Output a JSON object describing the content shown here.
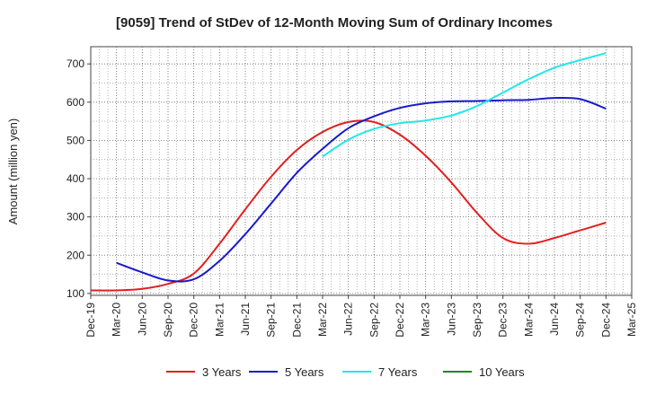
{
  "chart_data": {
    "type": "line",
    "title": "[9059]  Trend of StDev of 12-Month Moving Sum of Ordinary Incomes",
    "ylabel": "Amount (million yen)",
    "xlabel": "",
    "ylim": [
      95,
      745
    ],
    "yticks": [
      100,
      200,
      300,
      400,
      500,
      600,
      700
    ],
    "categories": [
      "Dec-19",
      "Mar-20",
      "Jun-20",
      "Sep-20",
      "Dec-20",
      "Mar-21",
      "Jun-21",
      "Sep-21",
      "Dec-21",
      "Mar-22",
      "Jun-22",
      "Sep-22",
      "Dec-22",
      "Mar-23",
      "Jun-23",
      "Sep-23",
      "Dec-23",
      "Mar-24",
      "Jun-24",
      "Sep-24",
      "Dec-24",
      "Mar-25"
    ],
    "grid": true,
    "legend_position": "bottom",
    "series": [
      {
        "name": "3 Years",
        "color": "#e02020",
        "x": [
          "Dec-19",
          "Mar-20",
          "Jun-20",
          "Sep-20",
          "Dec-20",
          "Mar-21",
          "Jun-21",
          "Sep-21",
          "Dec-21",
          "Mar-22",
          "Jun-22",
          "Sep-22",
          "Dec-22",
          "Mar-23",
          "Jun-23",
          "Sep-23",
          "Dec-23",
          "Mar-24",
          "Jun-24",
          "Sep-24",
          "Dec-24"
        ],
        "values": [
          108,
          108,
          112,
          125,
          152,
          230,
          320,
          405,
          475,
          522,
          548,
          548,
          515,
          460,
          390,
          310,
          245,
          230,
          245,
          265,
          285
        ]
      },
      {
        "name": "5 Years",
        "color": "#1a1acc",
        "x": [
          "Mar-20",
          "Jun-20",
          "Sep-20",
          "Dec-20",
          "Mar-21",
          "Jun-21",
          "Sep-21",
          "Dec-21",
          "Mar-22",
          "Jun-22",
          "Sep-22",
          "Dec-22",
          "Mar-23",
          "Jun-23",
          "Sep-23",
          "Dec-23",
          "Mar-24",
          "Jun-24",
          "Sep-24",
          "Dec-24"
        ],
        "values": [
          180,
          155,
          134,
          137,
          185,
          255,
          335,
          415,
          478,
          532,
          563,
          585,
          597,
          602,
          603,
          605,
          606,
          611,
          608,
          583
        ]
      },
      {
        "name": "7 Years",
        "color": "#22e8e8",
        "x": [
          "Mar-22",
          "Jun-22",
          "Sep-22",
          "Dec-22",
          "Mar-23",
          "Jun-23",
          "Sep-23",
          "Dec-23",
          "Mar-24",
          "Jun-24",
          "Sep-24",
          "Dec-24"
        ],
        "values": [
          458,
          502,
          530,
          545,
          552,
          565,
          590,
          625,
          660,
          690,
          710,
          728
        ]
      },
      {
        "name": "10 Years",
        "color": "#1e8a1e",
        "x": [],
        "values": []
      }
    ]
  }
}
